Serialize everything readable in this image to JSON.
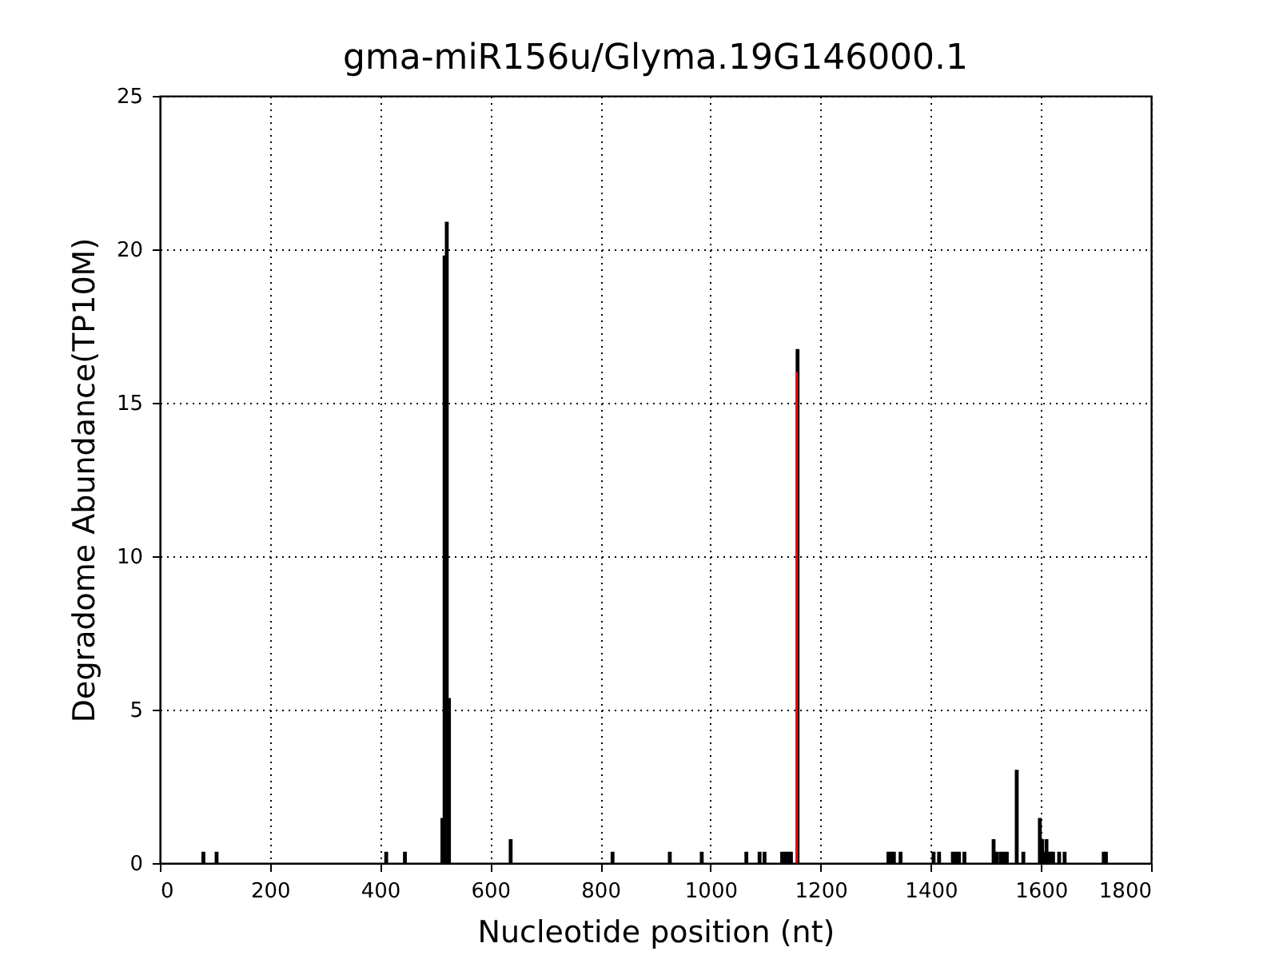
{
  "chart_data": {
    "type": "bar",
    "title": "gma-miR156u/Glyma.19G146000.1",
    "xlabel": "Nucleotide position (nt)",
    "ylabel": "Degradome Abundance(TP10M)",
    "xlim": [
      0,
      1800
    ],
    "xticks": [
      0,
      200,
      400,
      600,
      800,
      1000,
      1200,
      1400,
      1600,
      1800
    ],
    "ylim": [
      0,
      25
    ],
    "yticks": [
      0,
      5,
      10,
      15,
      20,
      25
    ],
    "grid": true,
    "series": [
      {
        "color": "#000000",
        "x": [
          79,
          103,
          411,
          445,
          513,
          517,
          521,
          525,
          637,
          822,
          926,
          984,
          1065,
          1089,
          1098,
          1130,
          1136,
          1142,
          1146,
          1158,
          1323,
          1328,
          1333,
          1345,
          1405,
          1415,
          1440,
          1446,
          1451,
          1461,
          1514,
          1520,
          1527,
          1533,
          1538,
          1556,
          1568,
          1598,
          1602,
          1606,
          1610,
          1614,
          1618,
          1622,
          1633,
          1643,
          1714,
          1718
        ],
        "values": [
          0.37,
          0.37,
          0.37,
          0.37,
          1.47,
          19.8,
          20.9,
          5.38,
          0.78,
          0.37,
          0.37,
          0.37,
          0.37,
          0.37,
          0.37,
          0.37,
          0.37,
          0.37,
          0.37,
          16.75,
          0.37,
          0.37,
          0.37,
          0.37,
          0.37,
          0.37,
          0.37,
          0.37,
          0.37,
          0.37,
          0.78,
          0.37,
          0.37,
          0.37,
          0.37,
          3.04,
          0.37,
          1.47,
          0.78,
          0.37,
          0.78,
          0.37,
          0.37,
          0.37,
          0.37,
          0.37,
          0.37,
          0.37
        ]
      },
      {
        "color": "#ff0000",
        "x": [
          1157
        ],
        "values": [
          16.0
        ]
      }
    ]
  }
}
